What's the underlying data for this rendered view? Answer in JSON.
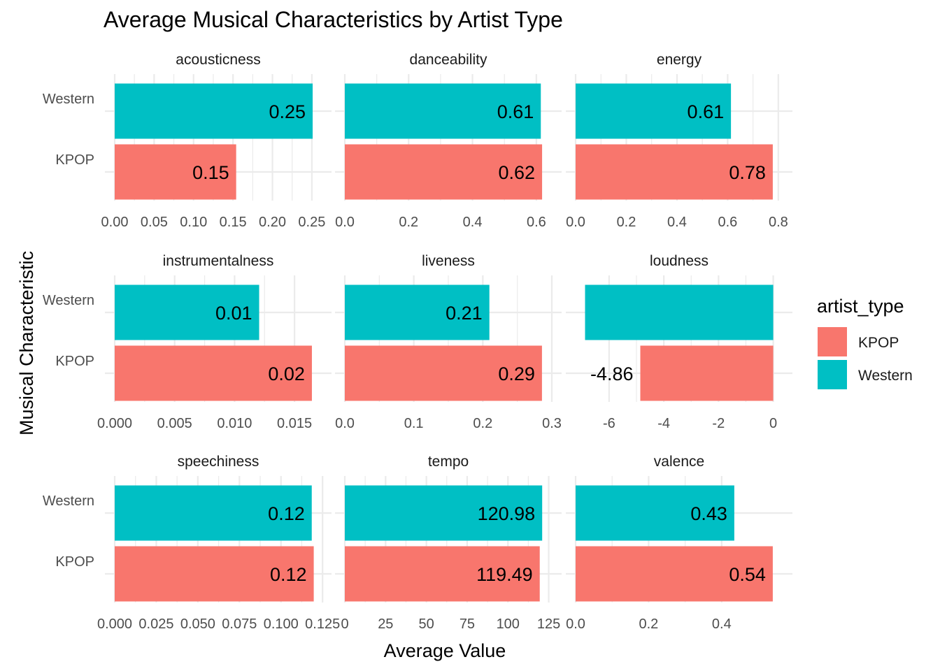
{
  "chart_data": {
    "type": "bar",
    "orientation": "horizontal",
    "title": "Average Musical Characteristics by Artist Type",
    "xlabel": "Average Value",
    "ylabel": "Musical Characteristic",
    "categories": [
      "KPOP",
      "Western"
    ],
    "grid": true,
    "legend": {
      "title": "artist_type",
      "position": "right",
      "entries": [
        {
          "name": "KPOP",
          "color": "#F8766D"
        },
        {
          "name": "Western",
          "color": "#00BFC4"
        }
      ]
    },
    "colors": {
      "KPOP": "#F8766D",
      "Western": "#00BFC4"
    },
    "facets": [
      {
        "name": "acousticness",
        "xlim": [
          0,
          0.2625
        ],
        "ticks": [
          "0.00",
          "0.05",
          "0.10",
          "0.15",
          "0.20",
          "0.25"
        ],
        "tick_values": [
          0,
          0.05,
          0.1,
          0.15,
          0.2,
          0.25
        ],
        "values": {
          "KPOP": 0.154,
          "Western": 0.251
        },
        "labels": {
          "KPOP": "0.15",
          "Western": "0.25"
        }
      },
      {
        "name": "danceability",
        "xlim": [
          0,
          0.6485
        ],
        "ticks": [
          "0.0",
          "0.2",
          "0.4",
          "0.6"
        ],
        "tick_values": [
          0,
          0.2,
          0.4,
          0.6
        ],
        "values": {
          "KPOP": 0.618,
          "Western": 0.614
        },
        "labels": {
          "KPOP": "0.62",
          "Western": "0.61"
        }
      },
      {
        "name": "energy",
        "xlim": [
          0,
          0.8169
        ],
        "ticks": [
          "0.0",
          "0.2",
          "0.4",
          "0.6",
          "0.8"
        ],
        "tick_values": [
          0,
          0.2,
          0.4,
          0.6,
          0.8
        ],
        "values": {
          "KPOP": 0.778,
          "Western": 0.613
        },
        "labels": {
          "KPOP": "0.78",
          "Western": "0.61"
        }
      },
      {
        "name": "instrumentalness",
        "xlim": [
          0,
          0.01727
        ],
        "ticks": [
          "0.000",
          "0.005",
          "0.010",
          "0.015"
        ],
        "tick_values": [
          0,
          0.005,
          0.01,
          0.015
        ],
        "values": {
          "KPOP": 0.01645,
          "Western": 0.01205
        },
        "labels": {
          "KPOP": "0.02",
          "Western": "0.01"
        }
      },
      {
        "name": "liveness",
        "xlim": [
          0,
          0.3
        ],
        "ticks": [
          "0.0",
          "0.1",
          "0.2",
          "0.3"
        ],
        "tick_values": [
          0,
          0.1,
          0.2,
          0.3
        ],
        "values": {
          "KPOP": 0.2857,
          "Western": 0.2095
        },
        "labels": {
          "KPOP": "0.29",
          "Western": "0.21"
        }
      },
      {
        "name": "loudness",
        "xlim": [
          -7.225,
          0.344
        ],
        "ticks": [
          "-6",
          "-4",
          "-2",
          "0"
        ],
        "tick_values": [
          -6,
          -4,
          -2,
          0
        ],
        "values": {
          "KPOP": -4.86,
          "Western": -6.88
        },
        "labels": {
          "KPOP": "-4.86",
          "Western": ""
        }
      },
      {
        "name": "speechiness",
        "xlim": [
          0,
          0.1245
        ],
        "ticks": [
          "0.000",
          "0.025",
          "0.050",
          "0.075",
          "0.100",
          "0.125"
        ],
        "tick_values": [
          0,
          0.025,
          0.05,
          0.075,
          0.1,
          0.125
        ],
        "values": {
          "KPOP": 0.1197,
          "Western": 0.1185
        },
        "labels": {
          "KPOP": "0.12",
          "Western": "0.12"
        }
      },
      {
        "name": "tempo",
        "xlim": [
          0,
          126.9
        ],
        "ticks": [
          "0",
          "25",
          "50",
          "75",
          "100",
          "125"
        ],
        "tick_values": [
          0,
          25,
          50,
          75,
          100,
          125
        ],
        "values": {
          "KPOP": 119.49,
          "Western": 120.98
        },
        "labels": {
          "KPOP": "119.49",
          "Western": "120.98"
        }
      },
      {
        "name": "valence",
        "xlim": [
          0,
          0.567
        ],
        "ticks": [
          "0.0",
          "0.2",
          "0.4"
        ],
        "tick_values": [
          0,
          0.2,
          0.4
        ],
        "values": {
          "KPOP": 0.54,
          "Western": 0.4346
        },
        "labels": {
          "KPOP": "0.54",
          "Western": "0.43"
        }
      }
    ]
  }
}
